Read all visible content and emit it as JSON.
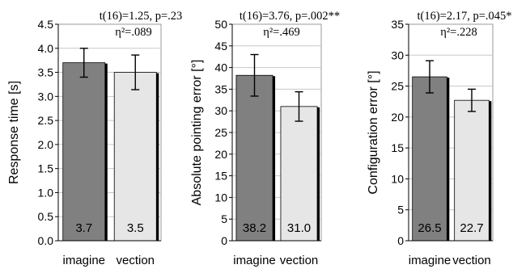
{
  "chart_data": [
    {
      "type": "bar",
      "categories": [
        "imagine",
        "vection"
      ],
      "values": [
        3.7,
        3.5
      ],
      "errors": [
        0.3,
        0.36
      ],
      "data_labels": [
        "3.7",
        "3.5"
      ],
      "ylabel": "Response time [s]",
      "ylim": [
        0,
        4.5
      ],
      "yticks": [
        "0.0",
        "0.5",
        "1.0",
        "1.5",
        "2.0",
        "2.5",
        "3.0",
        "3.5",
        "4.0",
        "4.5"
      ],
      "stats_line1": "t(16)=1.25, p=.23",
      "stats_line2": "η²=.089",
      "bar_colors": [
        "#808080",
        "#e6e6e6"
      ]
    },
    {
      "type": "bar",
      "categories": [
        "imagine",
        "vection"
      ],
      "values": [
        38.2,
        31.0
      ],
      "errors": [
        4.8,
        3.4
      ],
      "data_labels": [
        "38.2",
        "31.0"
      ],
      "ylabel": "Absolute pointing error [°]",
      "ylim": [
        0,
        50
      ],
      "yticks": [
        "0",
        "5",
        "10",
        "15",
        "20",
        "25",
        "30",
        "35",
        "40",
        "45",
        "50"
      ],
      "stats_line1": "t(16)=3.76, p=.002**",
      "stats_line2": "η²=.469",
      "bar_colors": [
        "#808080",
        "#e6e6e6"
      ]
    },
    {
      "type": "bar",
      "categories": [
        "imagine",
        "vection"
      ],
      "values": [
        26.5,
        22.7
      ],
      "errors": [
        2.6,
        1.8
      ],
      "data_labels": [
        "26.5",
        "22.7"
      ],
      "ylabel": "Configuration error [°]",
      "ylim": [
        0,
        35
      ],
      "yticks": [
        "0",
        "5",
        "10",
        "15",
        "20",
        "25",
        "30",
        "35"
      ],
      "stats_line1": "t(16)=2.17, p=.045*",
      "stats_line2": "η²=.228",
      "bar_colors": [
        "#808080",
        "#e6e6e6"
      ]
    }
  ]
}
